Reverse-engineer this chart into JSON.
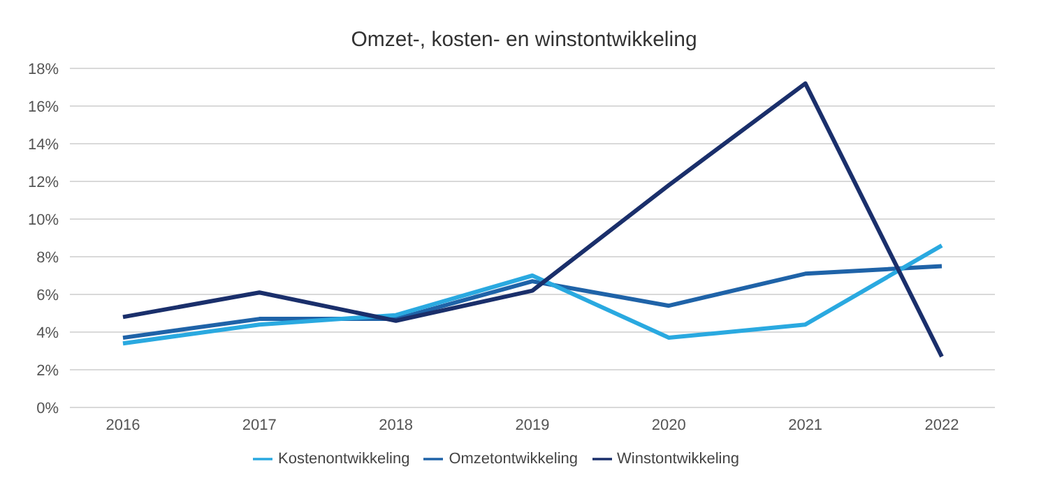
{
  "chart_data": {
    "type": "line",
    "title": "Omzet-, kosten- en winstontwikkeling",
    "categories": [
      "2016",
      "2017",
      "2018",
      "2019",
      "2020",
      "2021",
      "2022"
    ],
    "series": [
      {
        "name": "Omzetontwikkeling",
        "color": "#1f63a8",
        "values": [
          3.7,
          4.7,
          4.7,
          6.7,
          5.4,
          7.1,
          7.5
        ]
      },
      {
        "name": "Kostenontwikkeling",
        "color": "#2aa9e0",
        "values": [
          3.4,
          4.4,
          4.9,
          7.0,
          3.7,
          4.4,
          8.6
        ]
      },
      {
        "name": "Winstontwikkeling",
        "color": "#1a2f6b",
        "values": [
          4.8,
          6.1,
          4.6,
          6.2,
          11.8,
          17.2,
          2.7
        ]
      }
    ],
    "ylim": [
      0,
      18
    ],
    "yticks": [
      {
        "value": 0,
        "label": "0%"
      },
      {
        "value": 2,
        "label": "2%"
      },
      {
        "value": 4,
        "label": "4%"
      },
      {
        "value": 6,
        "label": "6%"
      },
      {
        "value": 8,
        "label": "8%"
      },
      {
        "value": 10,
        "label": "10%"
      },
      {
        "value": 12,
        "label": "12%"
      },
      {
        "value": 14,
        "label": "14%"
      },
      {
        "value": 16,
        "label": "16%"
      },
      {
        "value": 18,
        "label": "18%"
      }
    ],
    "grid": "y",
    "legend": "bottom",
    "marker": "none",
    "line_style": "solid"
  }
}
